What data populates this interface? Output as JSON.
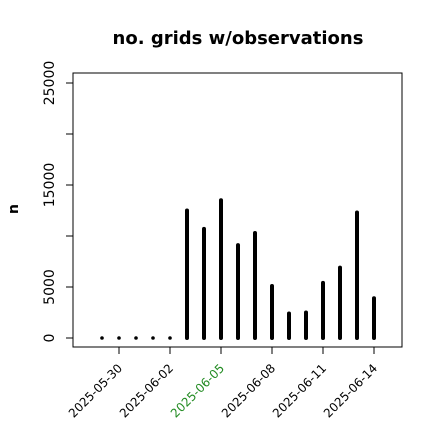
{
  "chart_data": {
    "type": "bar",
    "title": "no. grids w/observations",
    "xlabel": "",
    "ylabel": "n",
    "ylim": [
      -800,
      26500
    ],
    "yticks": [
      0,
      5000,
      15000,
      25000
    ],
    "ytick_labels": [
      "0",
      "5000",
      "15000",
      "25000"
    ],
    "dates": [
      "2025-05-29",
      "2025-05-30",
      "2025-05-31",
      "2025-06-01",
      "2025-06-02",
      "2025-06-03",
      "2025-06-04",
      "2025-06-05",
      "2025-06-06",
      "2025-06-07",
      "2025-06-08",
      "2025-06-09",
      "2025-06-10",
      "2025-06-11",
      "2025-06-12",
      "2025-06-13",
      "2025-06-14"
    ],
    "values": [
      0,
      0,
      0,
      0,
      0,
      12500,
      10700,
      13500,
      9100,
      10300,
      5100,
      2400,
      2500,
      5400,
      6900,
      12300,
      3900
    ],
    "xticks": [
      {
        "label": "2025-05-30",
        "index": 1,
        "color": "#000000"
      },
      {
        "label": "2025-06-02",
        "index": 4,
        "color": "#000000"
      },
      {
        "label": "2025-06-05",
        "index": 7,
        "color": "#228B22"
      },
      {
        "label": "2025-06-08",
        "index": 10,
        "color": "#000000"
      },
      {
        "label": "2025-06-11",
        "index": 13,
        "color": "#000000"
      },
      {
        "label": "2025-06-14",
        "index": 16,
        "color": "#000000"
      }
    ],
    "grid": false,
    "bar_color": "#000000"
  }
}
